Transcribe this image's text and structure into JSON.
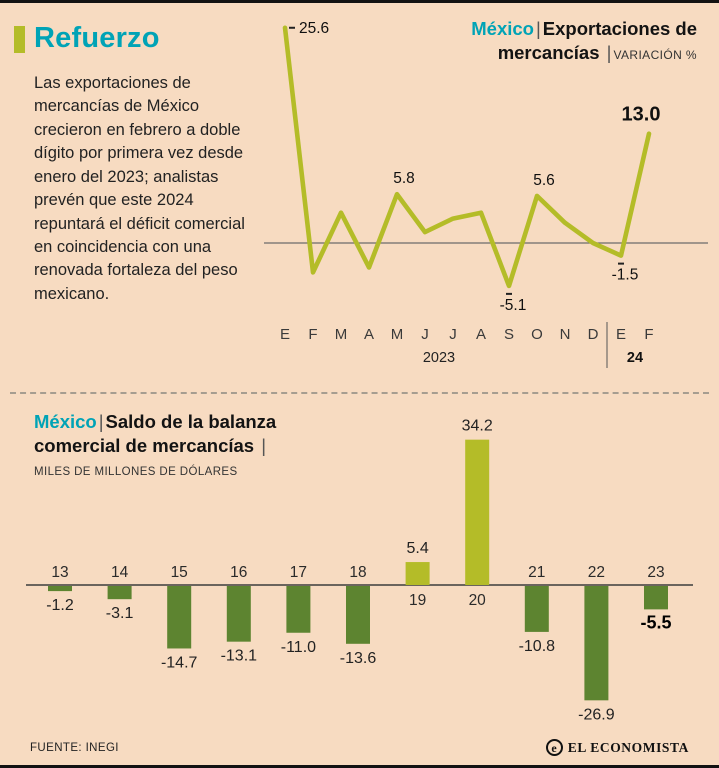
{
  "page": {
    "title": "Refuerzo",
    "body_text": "Las exportaciones de mercancías de México crecieron en febrero a doble dígito por primera vez desde enero del 2023; analistas prevén que este 2024 repuntará el déficit comercial en coincidencia con una renovada fortaleza del peso mexicano.",
    "source": "FUENTE: INEGI",
    "brand": "EL ECONOMISTA",
    "brand_icon": "e",
    "separator": "|"
  },
  "colors": {
    "background": "#f7dbc1",
    "teal": "#00a3b6",
    "line_green": "#b4bc28",
    "bar_dark_green": "#5d8430",
    "text": "#1b1b1b"
  },
  "chart_data": [
    {
      "type": "line",
      "title_accent": "México",
      "title_rest": "Exportaciones de mercancías",
      "title_unit": "VARIACIÓN %",
      "x": [
        "E",
        "F",
        "M",
        "A",
        "M",
        "J",
        "J",
        "A",
        "S",
        "O",
        "N",
        "D",
        "E",
        "F"
      ],
      "year_labels": [
        "2023",
        "24"
      ],
      "values": [
        25.6,
        -3.5,
        3.6,
        -2.9,
        5.8,
        1.3,
        2.9,
        3.6,
        -5.1,
        5.6,
        2.4,
        0.0,
        -1.5,
        13.0
      ],
      "labeled_points": {
        "0": "25.6",
        "4": "5.8",
        "8": "-5.1",
        "9": "5.6",
        "12": "-1.5",
        "13": "13.0"
      },
      "emphasis_index": 13,
      "ylim": [
        -8,
        27
      ],
      "grid": false,
      "legend": "none"
    },
    {
      "type": "bar",
      "title_accent": "México",
      "title_rest": "Saldo de la balanza comercial de mercancías",
      "title_unit": "MILES DE MILLONES DE DÓLARES",
      "categories": [
        "13",
        "14",
        "15",
        "16",
        "17",
        "18",
        "19",
        "20",
        "21",
        "22",
        "23"
      ],
      "values": [
        -1.2,
        -3.1,
        -14.7,
        -13.1,
        -11.0,
        -13.6,
        5.4,
        34.2,
        -10.8,
        -26.9,
        -5.5
      ],
      "emphasis_index": 10,
      "ylim": [
        -30,
        36
      ],
      "grid": false,
      "legend": "none"
    }
  ]
}
